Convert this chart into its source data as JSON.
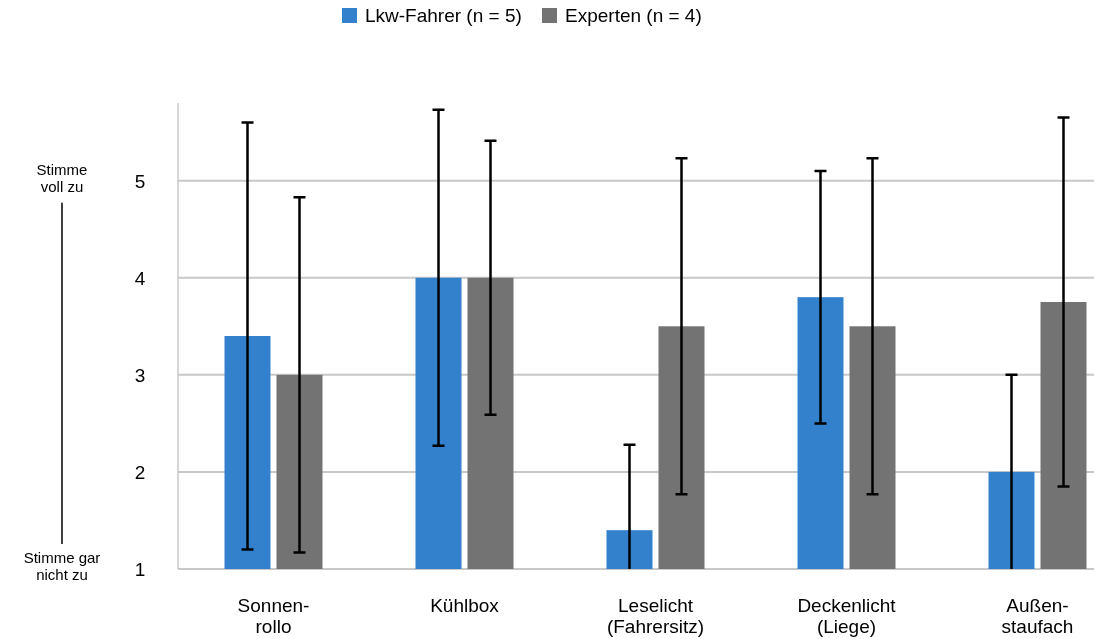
{
  "chart_data": {
    "type": "bar",
    "categories": [
      "Sonnen-\nrollo",
      "Kühlbox",
      "Leselicht\n(Fahrersitz)",
      "Deckenlicht\n(Liege)",
      "Außen-\nstaufach"
    ],
    "series": [
      {
        "name": "Lkw-Fahrer (n = 5)",
        "color": "#3380cc",
        "values": [
          3.4,
          4.0,
          1.4,
          3.8,
          2.0
        ],
        "errors": [
          2.2,
          1.73,
          [
            1,
            2.28
          ],
          1.3,
          [
            1,
            3.0
          ]
        ]
      },
      {
        "name": "Experten (n = 4)",
        "color": "#737373",
        "values": [
          3.0,
          4.0,
          3.5,
          3.5,
          3.75
        ],
        "errors": [
          1.83,
          1.41,
          1.73,
          1.73,
          1.9
        ]
      }
    ],
    "ylim": [
      1,
      5.8
    ],
    "yticks": [
      1,
      2,
      3,
      4,
      5
    ],
    "grid": "y",
    "legend": "top",
    "annotations": [
      "Stimme\nvoll zu",
      "Stimme gar\nnicht zu"
    ]
  }
}
